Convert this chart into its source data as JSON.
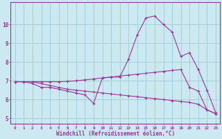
{
  "xlabel": "Windchill (Refroidissement éolien,°C)",
  "background_color": "#cce8f0",
  "grid_color": "#99ccd9",
  "line_color": "#993399",
  "x": [
    0,
    1,
    2,
    3,
    4,
    5,
    6,
    7,
    8,
    9,
    10,
    11,
    12,
    13,
    14,
    15,
    16,
    17,
    18,
    19,
    20,
    21,
    22,
    23
  ],
  "line1": [
    6.95,
    6.95,
    6.85,
    6.65,
    6.65,
    6.55,
    6.45,
    6.35,
    6.25,
    5.8,
    7.15,
    7.2,
    7.2,
    8.15,
    9.45,
    10.35,
    10.45,
    10.0,
    9.6,
    8.3,
    8.5,
    7.6,
    6.5,
    5.3
  ],
  "line2": [
    6.95,
    6.95,
    6.95,
    6.95,
    6.95,
    6.95,
    6.97,
    7.0,
    7.05,
    7.1,
    7.15,
    7.2,
    7.25,
    7.3,
    7.35,
    7.4,
    7.45,
    7.5,
    7.55,
    7.6,
    6.65,
    6.45,
    5.45,
    5.25
  ],
  "line3": [
    6.95,
    6.95,
    6.95,
    6.85,
    6.75,
    6.65,
    6.55,
    6.5,
    6.45,
    6.4,
    6.35,
    6.3,
    6.25,
    6.2,
    6.15,
    6.1,
    6.05,
    6.0,
    5.95,
    5.9,
    5.85,
    5.75,
    5.45,
    5.25
  ],
  "ylim": [
    4.7,
    11.2
  ],
  "yticks": [
    5,
    6,
    7,
    8,
    9,
    10
  ],
  "markersize": 2.0
}
